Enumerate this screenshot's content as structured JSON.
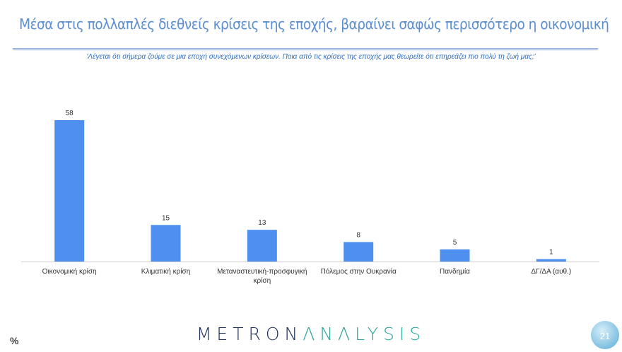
{
  "title": "Μέσα στις πολλαπλές διεθνείς κρίσεις της εποχής, βαραίνει σαφώς περισσότερο η οικονομική",
  "subtitle": "'Λέγεται ότι σήμερα ζούμε σε μια εποχή συνεχόμενων κρίσεων. Ποια από τις κρίσεις της εποχής μας θεωρείτε ότι επηρεάζει πιο πολύ τη ζωή μας;'",
  "unit_label": "%",
  "logo": {
    "part1": "METRON",
    "part2": "ΛNΛLYSIS"
  },
  "page_number": "21",
  "chart_data": {
    "type": "bar",
    "categories": [
      "Οικονομική κρίση",
      "Κλιματική κρίση",
      "Μεταναστευτική-προσφυγική κρίση",
      "Πόλεμος στην Ουκρανία",
      "Πανδημία",
      "ΔΓ/ΔΑ (αυθ.)"
    ],
    "values": [
      58,
      15,
      13,
      8,
      5,
      1
    ],
    "data_labels": [
      "58",
      "15",
      "13",
      "8",
      "5",
      "1"
    ],
    "ylim": [
      0,
      58
    ],
    "grid": false,
    "legend": "none",
    "colors": {
      "bar": "#4f8fef",
      "axis": "#d0d0d0"
    }
  }
}
